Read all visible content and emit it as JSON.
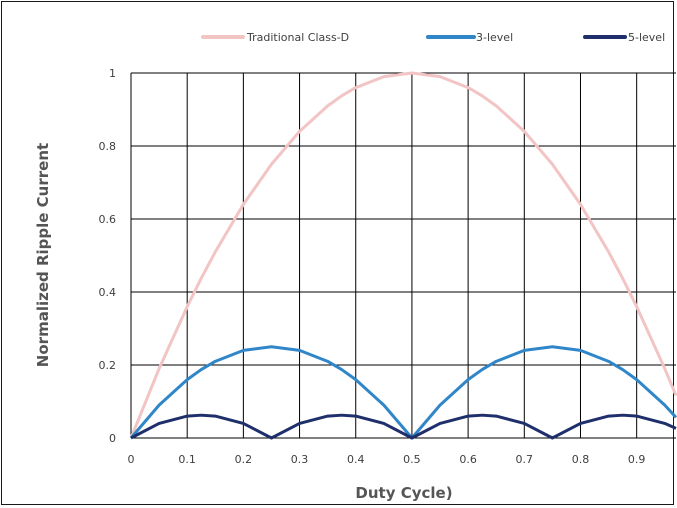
{
  "chart_data": {
    "type": "line",
    "xlabel": "Duty Cycle)",
    "ylabel": "Normalized Ripple Current",
    "xlim": [
      0,
      0.97
    ],
    "ylim": [
      0,
      1
    ],
    "x_ticks": [
      {
        "value": 0,
        "label": "0"
      },
      {
        "value": 0.1,
        "label": "0.1"
      },
      {
        "value": 0.2,
        "label": "0.2"
      },
      {
        "value": 0.3,
        "label": "0.3"
      },
      {
        "value": 0.4,
        "label": "0.4"
      },
      {
        "value": 0.5,
        "label": "0.5"
      },
      {
        "value": 0.6,
        "label": "0.6"
      },
      {
        "value": 0.7,
        "label": "0.7"
      },
      {
        "value": 0.8,
        "label": "0.8"
      },
      {
        "value": 0.9,
        "label": "0.9"
      }
    ],
    "y_ticks": [
      {
        "value": 0,
        "label": "0"
      },
      {
        "value": 0.2,
        "label": "0.2"
      },
      {
        "value": 0.4,
        "label": "0.4"
      },
      {
        "value": 0.6,
        "label": "0.6"
      },
      {
        "value": 0.8,
        "label": "0.8"
      },
      {
        "value": 1,
        "label": "1"
      }
    ],
    "grid": true,
    "legend_position": "top",
    "x": [
      0,
      0.05,
      0.1,
      0.125,
      0.15,
      0.2,
      0.25,
      0.3,
      0.35,
      0.375,
      0.4,
      0.45,
      0.5,
      0.55,
      0.6,
      0.625,
      0.65,
      0.7,
      0.75,
      0.8,
      0.85,
      0.875,
      0.9,
      0.95,
      0.97
    ],
    "series": [
      {
        "name": "Traditional Class-D",
        "color": "#f2c4c4",
        "values": [
          0,
          0.19,
          0.36,
          0.4375,
          0.51,
          0.64,
          0.75,
          0.84,
          0.91,
          0.9375,
          0.96,
          0.99,
          1,
          0.99,
          0.96,
          0.9375,
          0.91,
          0.84,
          0.75,
          0.64,
          0.51,
          0.4375,
          0.36,
          0.19,
          0.1164
        ]
      },
      {
        "name": "3-level",
        "color": "#2f86c8",
        "values": [
          0,
          0.09,
          0.16,
          0.1875,
          0.21,
          0.24,
          0.25,
          0.24,
          0.21,
          0.1875,
          0.16,
          0.09,
          0,
          0.09,
          0.16,
          0.1875,
          0.21,
          0.24,
          0.25,
          0.24,
          0.21,
          0.1875,
          0.16,
          0.09,
          0.0564
        ]
      },
      {
        "name": "5-level",
        "color": "#1f2f6b",
        "values": [
          0,
          0.04,
          0.06,
          0.0625,
          0.06,
          0.04,
          0,
          0.04,
          0.06,
          0.0625,
          0.06,
          0.04,
          0,
          0.04,
          0.06,
          0.0625,
          0.06,
          0.04,
          0,
          0.04,
          0.06,
          0.0625,
          0.06,
          0.04,
          0.0264
        ]
      }
    ]
  }
}
